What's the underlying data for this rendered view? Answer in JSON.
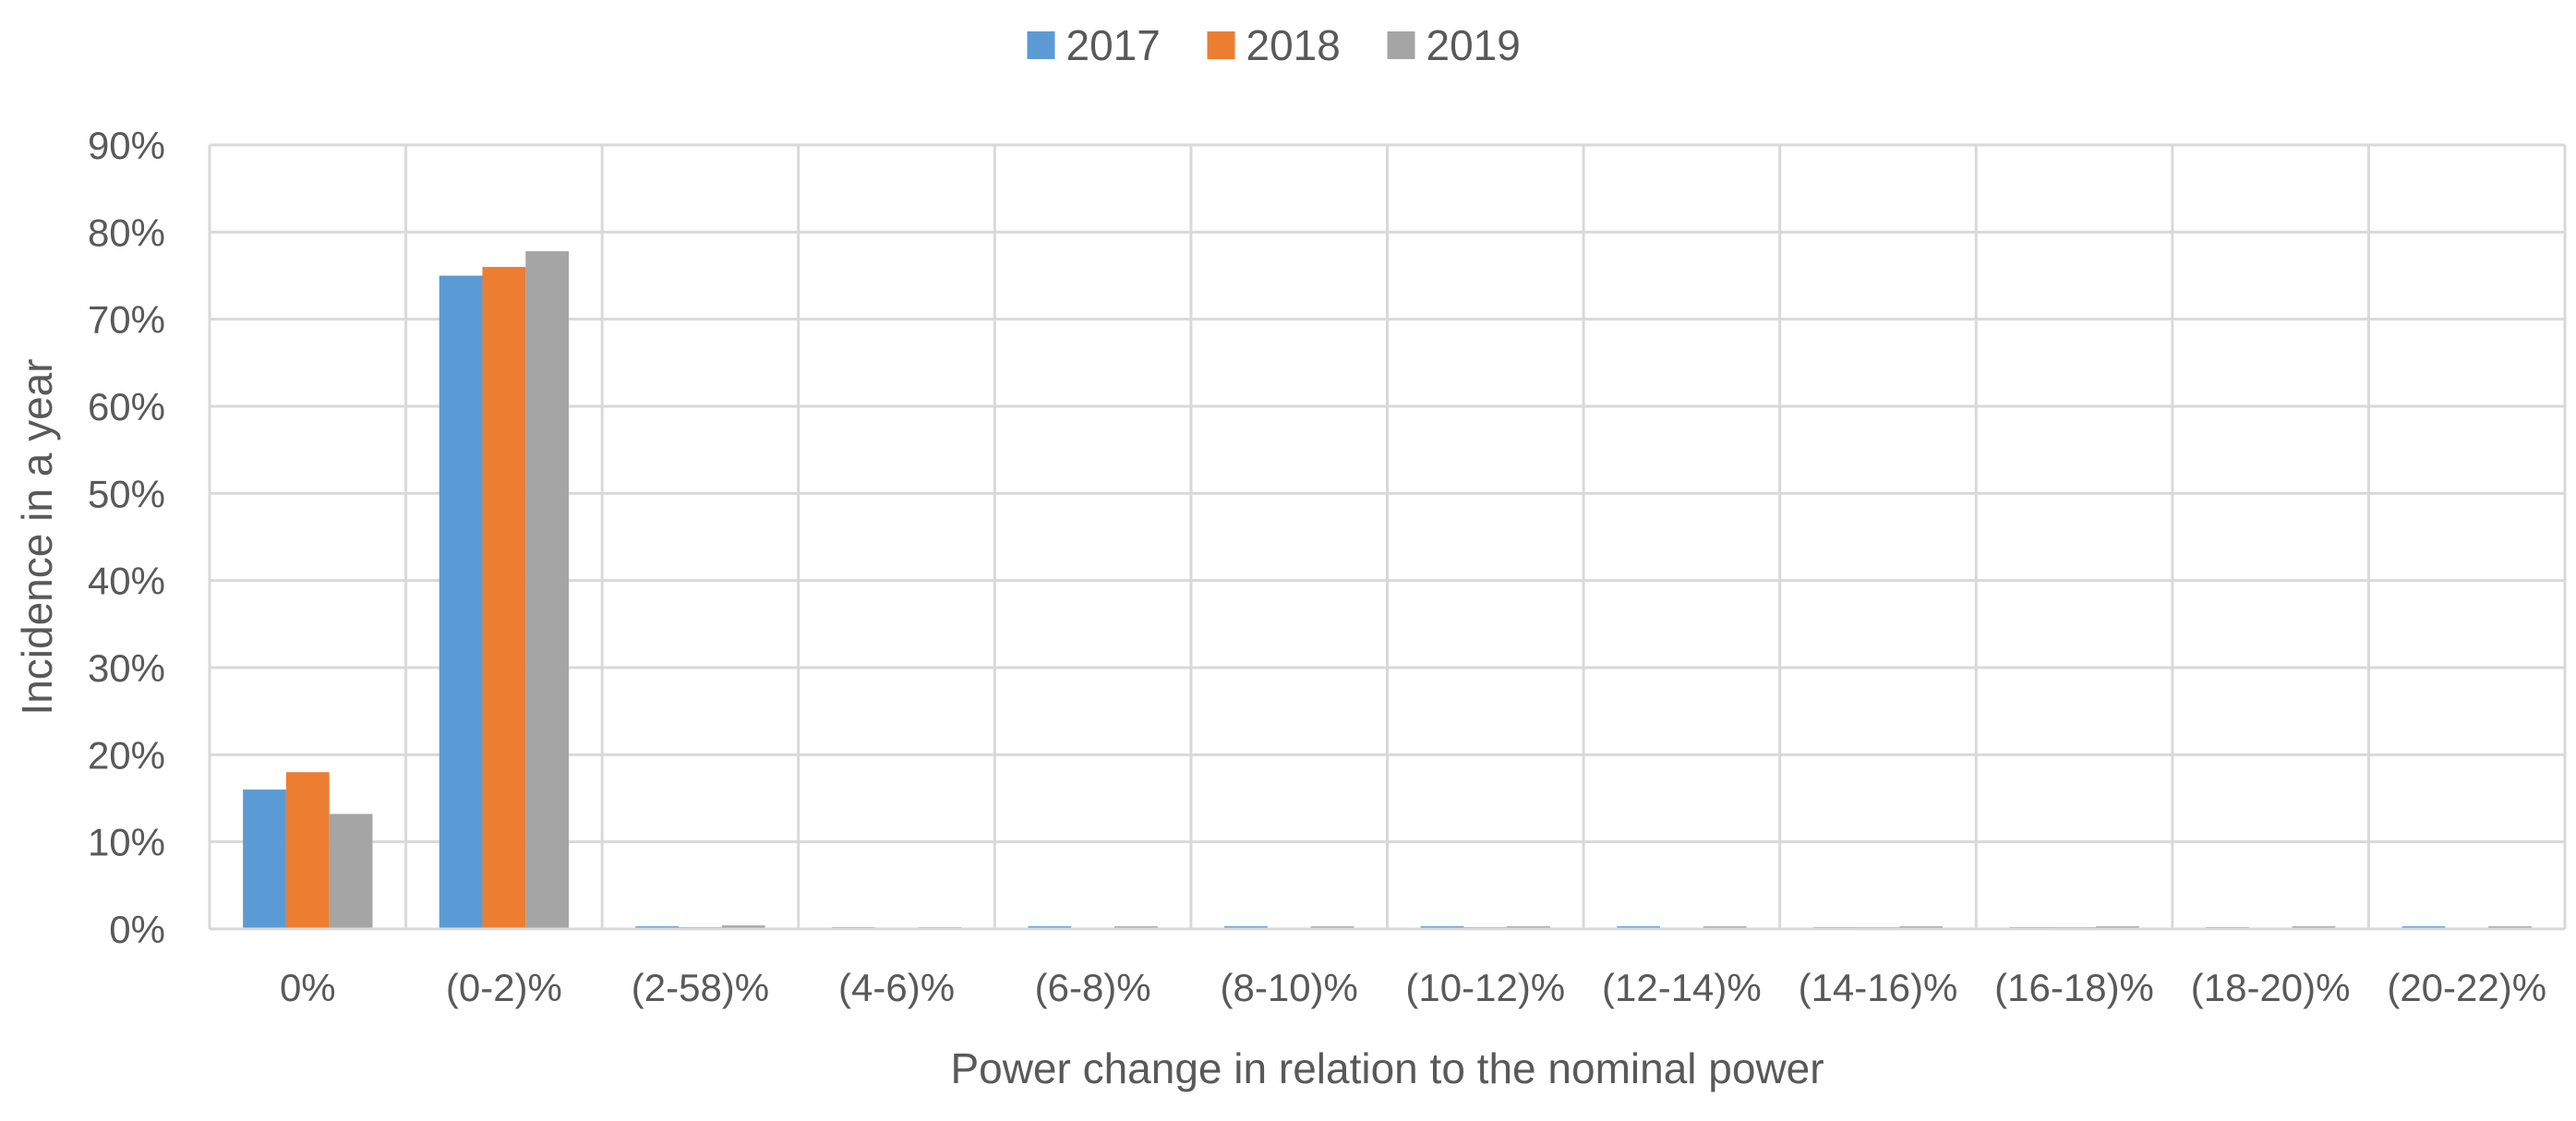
{
  "chart_data": {
    "type": "bar",
    "categories": [
      "0%",
      "(0-2)%",
      "(2-58)%",
      "(4-6)%",
      "(6-8)%",
      "(8-10)%",
      "(10-12)%",
      "(12-14)%",
      "(14-16)%",
      "(16-18)%",
      "(18-20)%",
      "(20-22)%"
    ],
    "series": [
      {
        "name": "2017",
        "color": "#5B9BD5",
        "values": [
          16.0,
          75.0,
          0.3,
          0.2,
          0.3,
          0.3,
          0.3,
          0.3,
          0.2,
          0.2,
          0.2,
          0.3
        ]
      },
      {
        "name": "2018",
        "color": "#ED7D31",
        "values": [
          18.0,
          76.0,
          0.2,
          0.0,
          0.0,
          0.0,
          0.2,
          0.0,
          0.2,
          0.2,
          0.0,
          0.0
        ]
      },
      {
        "name": "2019",
        "color": "#A5A5A5",
        "values": [
          13.2,
          77.8,
          0.4,
          0.2,
          0.3,
          0.3,
          0.3,
          0.3,
          0.3,
          0.3,
          0.3,
          0.3
        ]
      }
    ],
    "ylim": [
      0,
      90
    ],
    "yticks": [
      0,
      10,
      20,
      30,
      40,
      50,
      60,
      70,
      80,
      90
    ],
    "ytick_labels": [
      "0%",
      "10%",
      "20%",
      "30%",
      "40%",
      "50%",
      "60%",
      "70%",
      "80%",
      "90%"
    ],
    "xlabel": "Power change in relation to the nominal power",
    "ylabel": "Incidence in a year",
    "grid": "on",
    "legend_position": "top-center"
  }
}
